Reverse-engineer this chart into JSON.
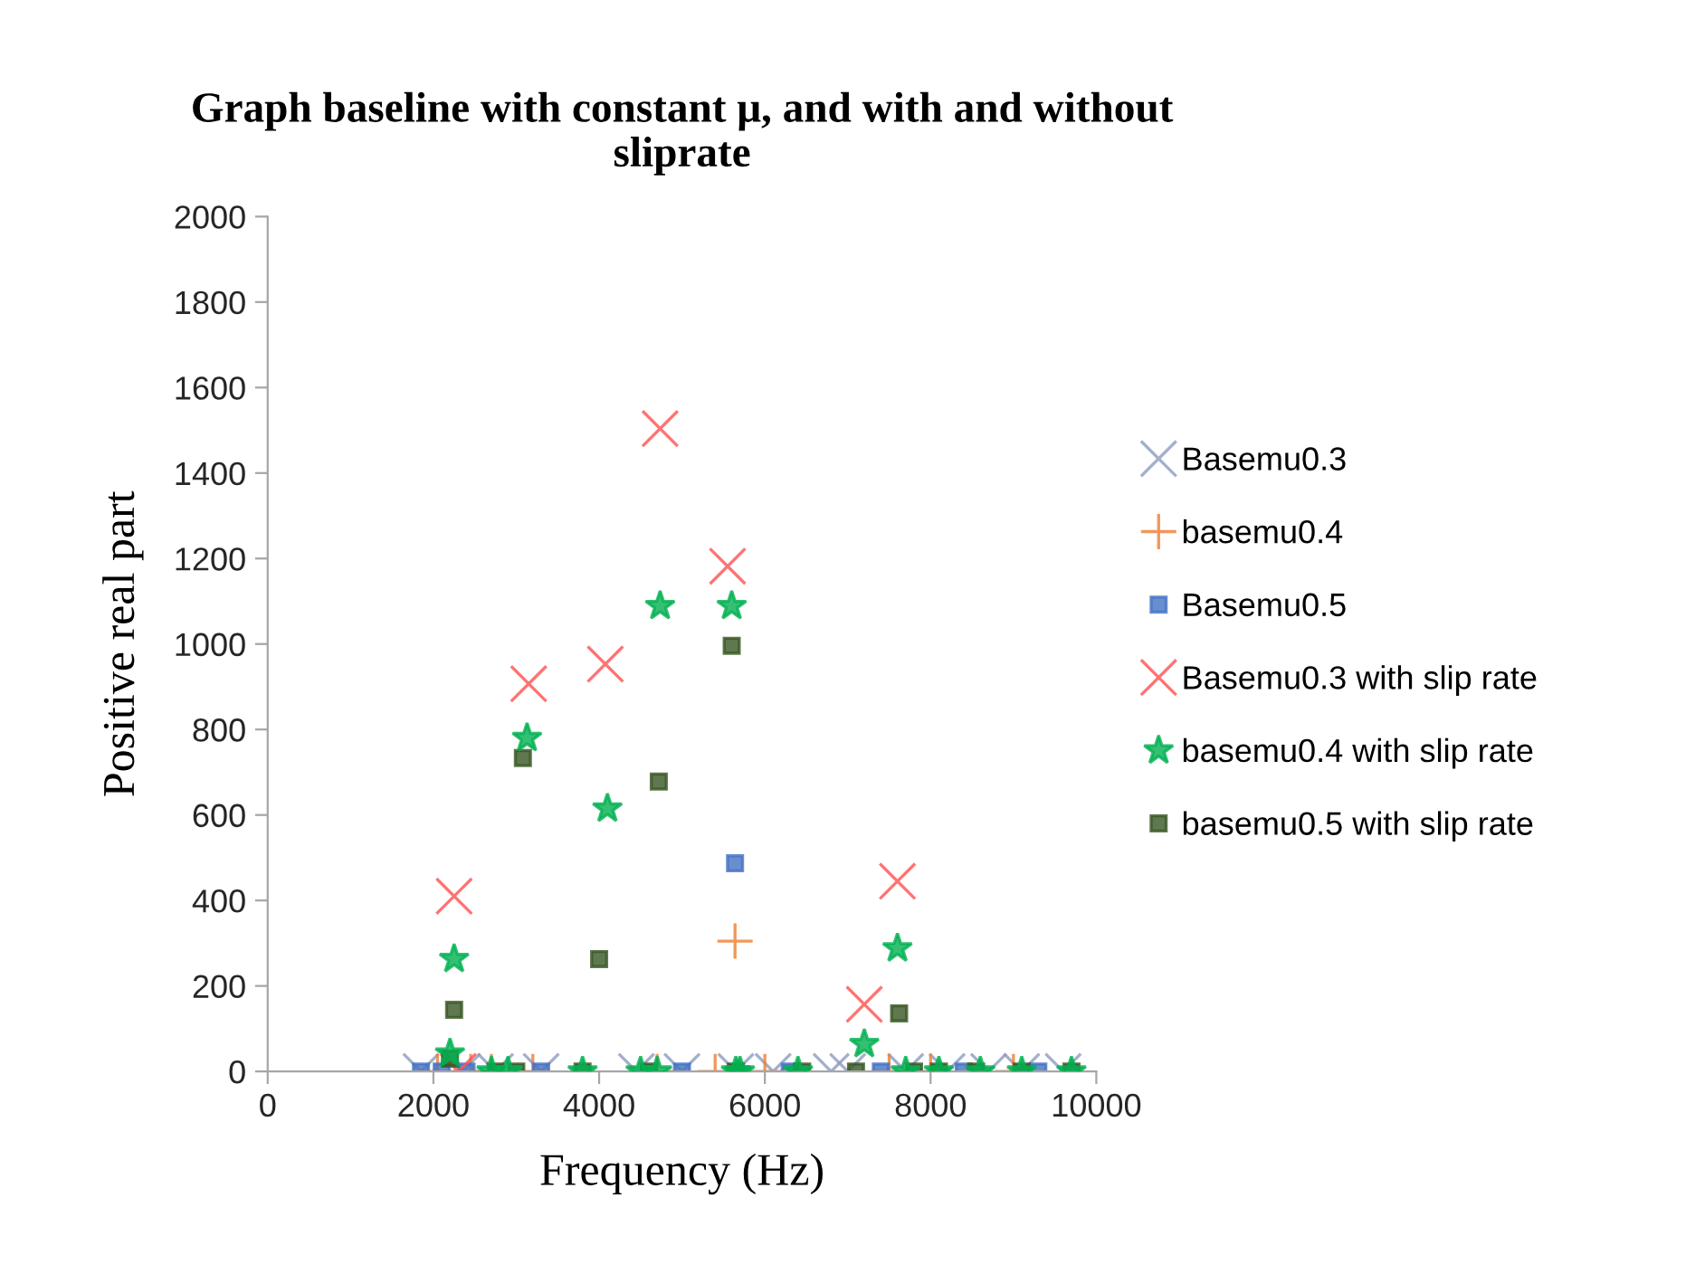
{
  "chart_data": {
    "type": "scatter",
    "title": "Graph baseline with constant μ, and with and without\nsliprate",
    "xlabel": "Frequency (Hz)",
    "ylabel": "Positive real part",
    "xlim": [
      0,
      10000
    ],
    "xticks": [
      0,
      2000,
      4000,
      6000,
      8000,
      10000
    ],
    "ylim": [
      0,
      2000
    ],
    "yticks": [
      0,
      200,
      400,
      600,
      800,
      1000,
      1200,
      1400,
      1600,
      1800,
      2000
    ],
    "grid": false,
    "legend": "right",
    "series": [
      {
        "name": "Basemu0.3",
        "color": "#8d9bc0",
        "marker": "cross",
        "x": [
          1850,
          2350,
          2750,
          3300,
          4450,
          5000,
          5650,
          6100,
          6800,
          7000,
          7700,
          8200,
          8700,
          9100,
          9600
        ],
        "values": [
          0,
          0,
          0,
          0,
          0,
          0,
          0,
          0,
          0,
          0,
          0,
          0,
          0,
          0,
          0
        ]
      },
      {
        "name": "basemu0.4",
        "color": "#ed7d31",
        "marker": "plus",
        "x": [
          2050,
          2450,
          2700,
          3200,
          4700,
          5400,
          5640,
          6000,
          7500,
          8000,
          9000
        ],
        "values": [
          0,
          0,
          0,
          0,
          0,
          0,
          305,
          0,
          0,
          0,
          0
        ]
      },
      {
        "name": "Basemu0.5",
        "color": "#4472c4",
        "marker": "square",
        "x": [
          1850,
          2100,
          2400,
          3300,
          5000,
          5640,
          6300,
          7400,
          8400,
          9300
        ],
        "values": [
          0,
          0,
          0,
          0,
          0,
          487,
          0,
          0,
          0,
          0
        ]
      },
      {
        "name": "Basemu0.3 with slip rate",
        "color": "#ff5050",
        "marker": "cross",
        "x": [
          2250,
          2300,
          3150,
          4075,
          4736,
          5550,
          7200,
          7600
        ],
        "values": [
          410,
          0,
          907,
          953,
          1504,
          1182,
          157,
          445
        ]
      },
      {
        "name": "basemu0.4 with slip rate",
        "color": "#00b050",
        "marker": "star",
        "x": [
          2200,
          2250,
          2700,
          2900,
          3130,
          3800,
          4100,
          4500,
          4700,
          4736,
          5600,
          5650,
          5700,
          6400,
          7200,
          7600,
          7700,
          8100,
          8600,
          9100,
          9700
        ],
        "values": [
          42,
          263,
          0,
          0,
          780,
          0,
          615,
          0,
          0,
          1089,
          1089,
          0,
          0,
          0,
          64,
          288,
          0,
          0,
          0,
          0,
          0
        ]
      },
      {
        "name": "basemu0.5 with slip rate",
        "color": "#375623",
        "marker": "square",
        "x": [
          2200,
          2250,
          2750,
          3000,
          3080,
          3800,
          4000,
          4600,
          4720,
          5600,
          5650,
          6450,
          7100,
          7620,
          7800,
          8100,
          8550,
          9100,
          9700
        ],
        "values": [
          30,
          144,
          0,
          0,
          733,
          0,
          263,
          0,
          678,
          996,
          0,
          0,
          0,
          136,
          0,
          0,
          0,
          0,
          0
        ]
      }
    ]
  }
}
